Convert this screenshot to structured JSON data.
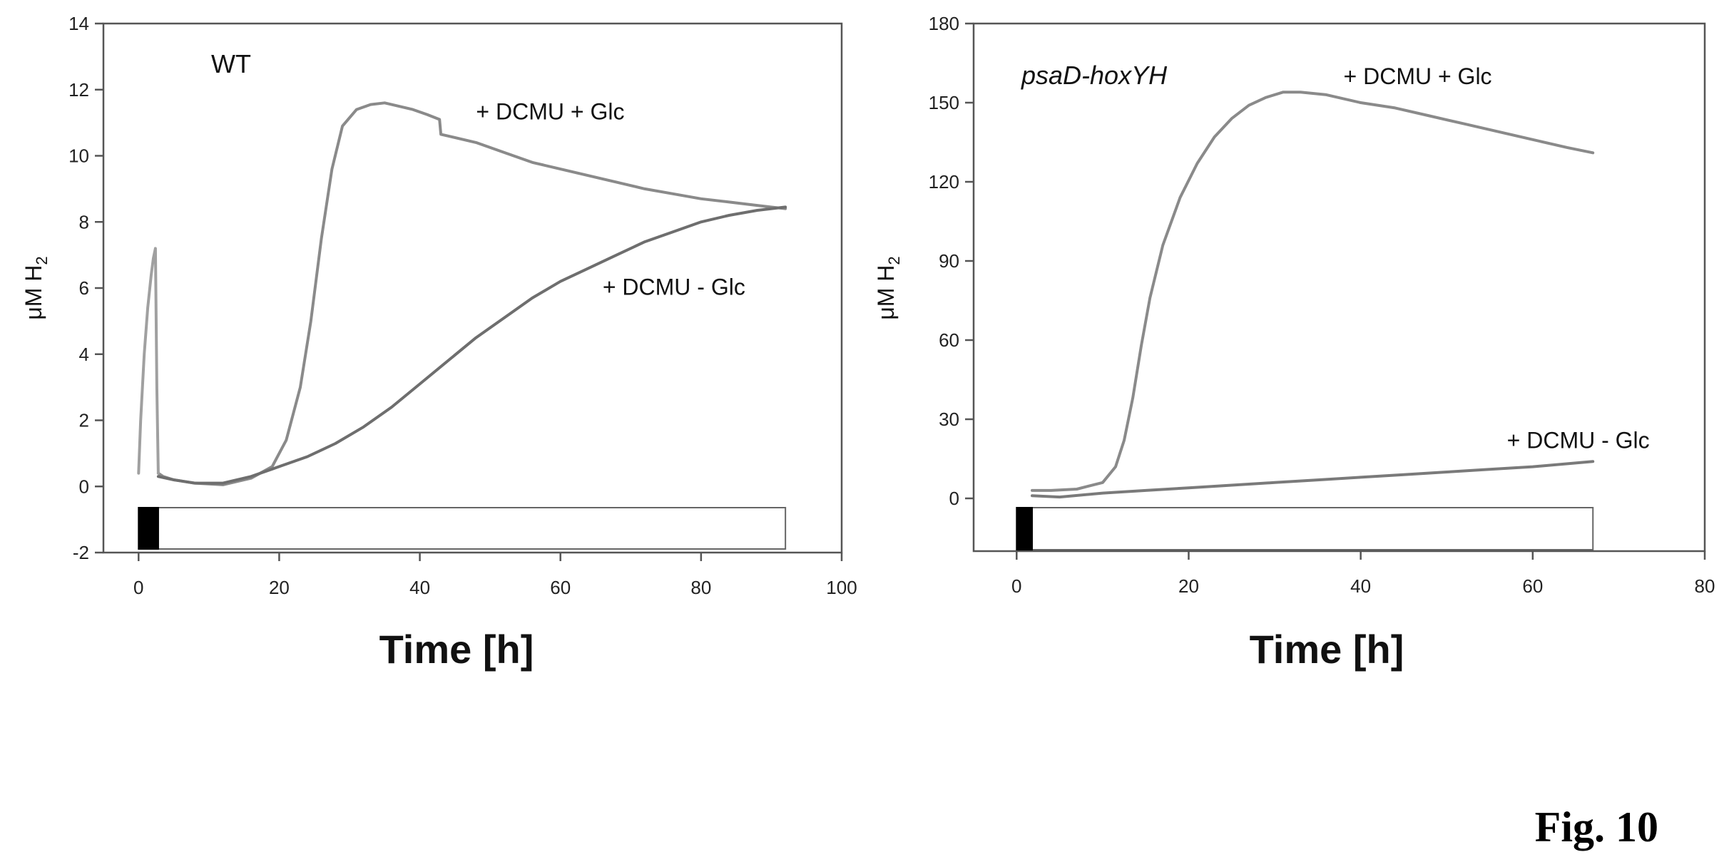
{
  "figure_label": "Fig. 10",
  "chart_data": [
    {
      "type": "line",
      "panel_label": "WT",
      "panel_label_italic": false,
      "xlabel": "Time [h]",
      "ylabel": "μM H",
      "ylabel_sub": "2",
      "xlim": [
        -5,
        100
      ],
      "ylim": [
        -2,
        14
      ],
      "xticks": [
        0,
        20,
        40,
        60,
        80,
        100
      ],
      "yticks": [
        -2,
        0,
        2,
        4,
        6,
        8,
        10,
        12,
        14
      ],
      "grid": false,
      "dark_period": [
        0,
        2.8
      ],
      "light_period": [
        2.8,
        92
      ],
      "series": [
        {
          "label": "+ DCMU + Glc",
          "label_anchor": [
            48,
            11.1
          ],
          "color": "#8a8a8a",
          "x": [
            2.8,
            3.5,
            5,
            8,
            12,
            16,
            19,
            21,
            23,
            24.5,
            26,
            27.5,
            29,
            31,
            33,
            35,
            37,
            39,
            41,
            42.8,
            43,
            44,
            48,
            52,
            56,
            60,
            64,
            68,
            72,
            76,
            80,
            84,
            88,
            92
          ],
          "y": [
            0.4,
            0.3,
            0.2,
            0.1,
            0.05,
            0.25,
            0.6,
            1.4,
            3.0,
            5.0,
            7.5,
            9.6,
            10.9,
            11.4,
            11.55,
            11.6,
            11.5,
            11.4,
            11.25,
            11.1,
            10.65,
            10.6,
            10.4,
            10.1,
            9.8,
            9.6,
            9.4,
            9.2,
            9.0,
            8.85,
            8.7,
            8.6,
            8.5,
            8.4
          ]
        },
        {
          "label": "+ DCMU - Glc",
          "label_anchor": [
            66,
            5.8
          ],
          "color": "#6e6e6e",
          "x": [
            2.8,
            5,
            8,
            12,
            16,
            20,
            24,
            28,
            32,
            36,
            40,
            44,
            48,
            52,
            56,
            60,
            64,
            68,
            72,
            76,
            80,
            84,
            88,
            92
          ],
          "y": [
            0.3,
            0.2,
            0.1,
            0.1,
            0.3,
            0.6,
            0.9,
            1.3,
            1.8,
            2.4,
            3.1,
            3.8,
            4.5,
            5.1,
            5.7,
            6.2,
            6.6,
            7.0,
            7.4,
            7.7,
            8.0,
            8.2,
            8.35,
            8.45
          ]
        },
        {
          "label": "",
          "color": "#a0a0a0",
          "x": [
            0,
            0.3,
            0.8,
            1.3,
            1.8,
            2.1,
            2.4,
            2.6,
            2.8
          ],
          "y": [
            0.4,
            2.0,
            4.0,
            5.4,
            6.4,
            6.9,
            7.2,
            3.0,
            0.4
          ]
        }
      ]
    },
    {
      "type": "line",
      "panel_label": "psaD-hoxYH",
      "panel_label_italic": true,
      "xlabel": "Time [h]",
      "ylabel": "μM H",
      "ylabel_sub": "2",
      "xlim": [
        -5,
        80
      ],
      "ylim": [
        -20,
        180
      ],
      "xticks": [
        0,
        20,
        40,
        60,
        80
      ],
      "yticks": [
        0,
        30,
        60,
        90,
        120,
        150,
        180
      ],
      "grid": false,
      "dark_period": [
        0,
        1.8
      ],
      "light_period": [
        1.8,
        67
      ],
      "series": [
        {
          "label": "+ DCMU + Glc",
          "label_anchor": [
            38,
            157
          ],
          "color": "#8a8a8a",
          "x": [
            1.8,
            4,
            7,
            10,
            11.5,
            12.5,
            13.5,
            14.5,
            15.5,
            17,
            19,
            21,
            23,
            25,
            27,
            29,
            31,
            33,
            36,
            40,
            44,
            48,
            52,
            56,
            60,
            64,
            67
          ],
          "y": [
            3,
            3,
            3.5,
            6,
            12,
            22,
            38,
            58,
            76,
            96,
            114,
            127,
            137,
            144,
            149,
            152,
            154,
            154,
            153,
            150,
            148,
            145,
            142,
            139,
            136,
            133,
            131
          ]
        },
        {
          "label": "+ DCMU - Glc",
          "label_anchor": [
            57,
            19
          ],
          "color": "#7a7a7a",
          "x": [
            1.8,
            5,
            10,
            15,
            20,
            25,
            30,
            35,
            40,
            45,
            50,
            55,
            60,
            67
          ],
          "y": [
            1,
            0.5,
            2,
            3,
            4,
            5,
            6,
            7,
            8,
            9,
            10,
            11,
            12,
            14
          ]
        }
      ]
    }
  ]
}
